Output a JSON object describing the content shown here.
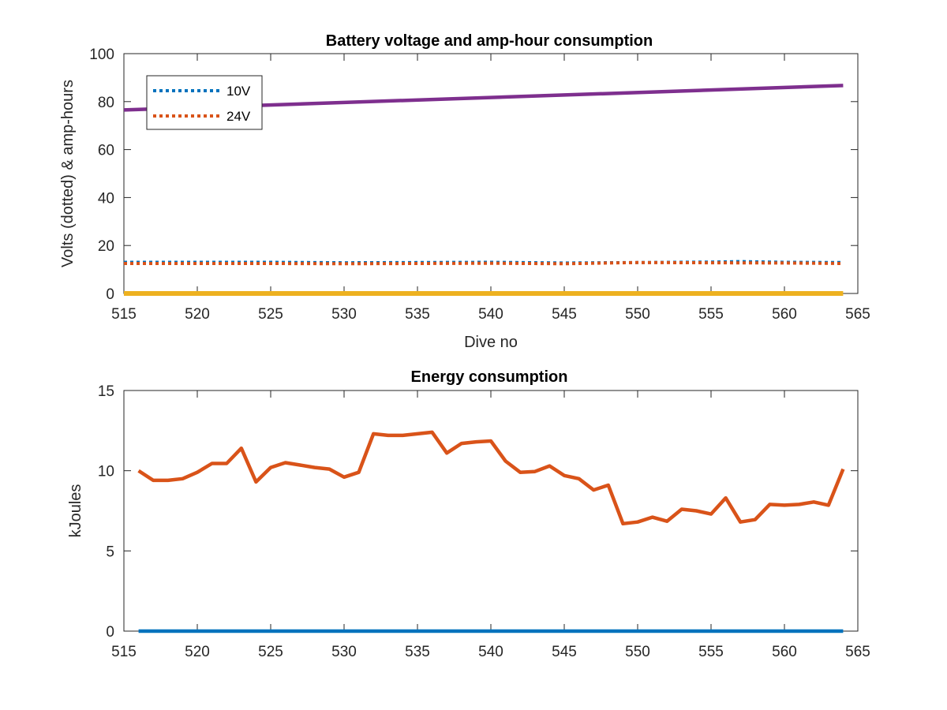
{
  "chart_data": [
    {
      "type": "line",
      "title": "Battery voltage and amp-hour consumption",
      "xlabel": "Dive no",
      "ylabel": "Volts (dotted) & amp-hours",
      "xlim": [
        515,
        565
      ],
      "ylim": [
        0,
        100
      ],
      "xticks": [
        515,
        520,
        525,
        530,
        535,
        540,
        545,
        550,
        555,
        560,
        565
      ],
      "yticks": [
        0,
        20,
        40,
        60,
        80,
        100
      ],
      "grid": false,
      "legend": "top-left",
      "series": [
        {
          "name": "10V",
          "style": "dotted",
          "color": "#0072BD",
          "in_legend": true,
          "x": [
            515,
            520,
            525,
            530,
            535,
            540,
            545,
            550,
            555,
            557,
            560,
            564
          ],
          "y": [
            13,
            13,
            13,
            12.8,
            12.9,
            13,
            12.7,
            12.9,
            13.1,
            13.3,
            13,
            12.9
          ]
        },
        {
          "name": "24V",
          "style": "dotted",
          "color": "#D95319",
          "in_legend": true,
          "x": [
            515,
            520,
            525,
            530,
            535,
            540,
            545,
            550,
            555,
            560,
            564
          ],
          "y": [
            12.5,
            12.5,
            12.5,
            12.4,
            12.5,
            12.6,
            12.4,
            12.9,
            12.8,
            12.7,
            12.5
          ]
        },
        {
          "name": "",
          "style": "solid",
          "color": "#EDB120",
          "in_legend": false,
          "x": [
            515,
            564
          ],
          "y": [
            0,
            0
          ]
        },
        {
          "name": "",
          "style": "solid",
          "color": "#7E2F8E",
          "in_legend": false,
          "x": [
            515,
            564
          ],
          "y": [
            76.5,
            86.7
          ]
        }
      ]
    },
    {
      "type": "line",
      "title": "Energy consumption",
      "xlabel": "",
      "ylabel": "kJoules",
      "xlim": [
        515,
        565
      ],
      "ylim": [
        0,
        15
      ],
      "xticks": [
        515,
        520,
        525,
        530,
        535,
        540,
        545,
        550,
        555,
        560,
        565
      ],
      "yticks": [
        0,
        5,
        10,
        15
      ],
      "grid": false,
      "series": [
        {
          "name": "",
          "style": "solid",
          "color": "#D95319",
          "x": [
            516,
            517,
            518,
            519,
            520,
            521,
            522,
            523,
            524,
            525,
            526,
            527,
            528,
            529,
            530,
            531,
            532,
            533,
            534,
            535,
            536,
            537,
            538,
            539,
            540,
            541,
            542,
            543,
            544,
            545,
            546,
            547,
            548,
            549,
            550,
            551,
            552,
            553,
            554,
            555,
            556,
            557,
            558,
            559,
            560,
            561,
            562,
            563,
            564
          ],
          "y": [
            10.0,
            9.4,
            9.4,
            9.5,
            9.9,
            10.45,
            10.45,
            11.4,
            9.3,
            10.2,
            10.5,
            10.35,
            10.2,
            10.1,
            9.6,
            9.9,
            12.3,
            12.2,
            12.2,
            12.3,
            12.4,
            11.1,
            11.7,
            11.8,
            11.85,
            10.6,
            9.9,
            9.95,
            10.3,
            9.7,
            9.5,
            8.8,
            9.1,
            6.7,
            6.8,
            7.1,
            6.85,
            7.6,
            7.5,
            7.3,
            8.3,
            6.8,
            6.95,
            7.9,
            7.85,
            7.9,
            8.05,
            7.85,
            10.1
          ]
        },
        {
          "name": "",
          "style": "solid",
          "color": "#0072BD",
          "x": [
            516,
            564
          ],
          "y": [
            0,
            0
          ]
        }
      ]
    }
  ]
}
